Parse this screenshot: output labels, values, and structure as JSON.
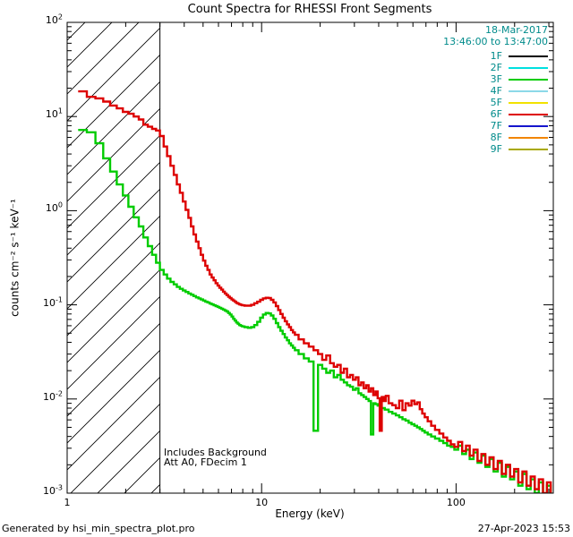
{
  "chart_data": {
    "type": "line",
    "title": "Count Spectra for RHESSI Front Segments",
    "date_label": "18-Mar-2017",
    "time_label": "13:46:00 to 13:47:00",
    "xlabel": "Energy (keV)",
    "ylabel": "counts cm⁻² s⁻¹ keV⁻¹",
    "xscale": "log",
    "yscale": "log",
    "xlim": [
      1,
      316.23
    ],
    "ylim": [
      0.001,
      100
    ],
    "grid": false,
    "legend_position": "top-right",
    "accent_text_color": "#008b8b",
    "axis_color": "#000000",
    "background_color": "#ffffff",
    "hatch_region_kev": [
      1,
      3
    ],
    "annotations": [
      "Includes Background",
      "Att A0, FDecim 1"
    ],
    "x_ticks": [
      {
        "v": 1,
        "label": "1"
      },
      {
        "v": 10,
        "label": "10"
      },
      {
        "v": 100,
        "label": "100"
      }
    ],
    "y_ticks": [
      {
        "v": 100,
        "base": "10",
        "exp": "2"
      },
      {
        "v": 10,
        "base": "10",
        "exp": "1"
      },
      {
        "v": 1,
        "base": "10",
        "exp": "0"
      },
      {
        "v": 0.1,
        "base": "10",
        "exp": "-1"
      },
      {
        "v": 0.01,
        "base": "10",
        "exp": "-2"
      },
      {
        "v": 0.001,
        "base": "10",
        "exp": "-3"
      }
    ],
    "legend": [
      {
        "label": "1F",
        "color": "#000000"
      },
      {
        "label": "2F",
        "color": "#00e0e0"
      },
      {
        "label": "3F",
        "color": "#00cc00"
      },
      {
        "label": "4F",
        "color": "#8cd9e8"
      },
      {
        "label": "5F",
        "color": "#f2e200"
      },
      {
        "label": "6F",
        "color": "#dd0000"
      },
      {
        "label": "7F",
        "color": "#1515cd"
      },
      {
        "label": "8F",
        "color": "#f28500"
      },
      {
        "label": "9F",
        "color": "#a8a800"
      }
    ],
    "series": [
      {
        "name": "3F",
        "color": "#00cc00",
        "points": [
          [
            1.2,
            7.2
          ],
          [
            1.33,
            6.8
          ],
          [
            1.47,
            5.2
          ],
          [
            1.6,
            3.6
          ],
          [
            1.73,
            2.6
          ],
          [
            1.87,
            1.9
          ],
          [
            2.0,
            1.45
          ],
          [
            2.13,
            1.1
          ],
          [
            2.27,
            0.85
          ],
          [
            2.4,
            0.68
          ],
          [
            2.53,
            0.52
          ],
          [
            2.67,
            0.42
          ],
          [
            2.8,
            0.34
          ],
          [
            2.93,
            0.28
          ],
          [
            3.07,
            0.235
          ],
          [
            3.2,
            0.21
          ],
          [
            3.33,
            0.19
          ],
          [
            3.47,
            0.175
          ],
          [
            3.6,
            0.165
          ],
          [
            3.73,
            0.155
          ],
          [
            3.87,
            0.148
          ],
          [
            4.0,
            0.142
          ],
          [
            4.13,
            0.137
          ],
          [
            4.27,
            0.132
          ],
          [
            4.4,
            0.128
          ],
          [
            4.53,
            0.124
          ],
          [
            4.67,
            0.12
          ],
          [
            4.8,
            0.117
          ],
          [
            4.93,
            0.114
          ],
          [
            5.07,
            0.111
          ],
          [
            5.2,
            0.108
          ],
          [
            5.33,
            0.106
          ],
          [
            5.47,
            0.103
          ],
          [
            5.6,
            0.101
          ],
          [
            5.73,
            0.099
          ],
          [
            5.87,
            0.097
          ],
          [
            6.0,
            0.095
          ],
          [
            6.13,
            0.093
          ],
          [
            6.27,
            0.091
          ],
          [
            6.4,
            0.089
          ],
          [
            6.53,
            0.087
          ],
          [
            6.67,
            0.085
          ],
          [
            6.8,
            0.082
          ],
          [
            6.93,
            0.079
          ],
          [
            7.07,
            0.075
          ],
          [
            7.2,
            0.071
          ],
          [
            7.33,
            0.068
          ],
          [
            7.47,
            0.065
          ],
          [
            7.6,
            0.063
          ],
          [
            7.73,
            0.061
          ],
          [
            7.87,
            0.06
          ],
          [
            8.0,
            0.059
          ],
          [
            8.33,
            0.058
          ],
          [
            8.67,
            0.057
          ],
          [
            9.0,
            0.058
          ],
          [
            9.33,
            0.061
          ],
          [
            9.67,
            0.066
          ],
          [
            10.0,
            0.073
          ],
          [
            10.33,
            0.079
          ],
          [
            10.67,
            0.082
          ],
          [
            11.0,
            0.081
          ],
          [
            11.33,
            0.077
          ],
          [
            11.67,
            0.071
          ],
          [
            12.0,
            0.064
          ],
          [
            12.33,
            0.058
          ],
          [
            12.67,
            0.053
          ],
          [
            13.0,
            0.049
          ],
          [
            13.33,
            0.045
          ],
          [
            13.67,
            0.042
          ],
          [
            14.0,
            0.039
          ],
          [
            14.33,
            0.037
          ],
          [
            14.67,
            0.035
          ],
          [
            15.0,
            0.033
          ],
          [
            16,
            0.03
          ],
          [
            17,
            0.027
          ],
          [
            18,
            0.025
          ],
          [
            19,
            0.0046
          ],
          [
            20,
            0.023
          ],
          [
            21,
            0.021
          ],
          [
            22,
            0.019
          ],
          [
            23,
            0.02
          ],
          [
            24,
            0.017
          ],
          [
            25,
            0.018
          ],
          [
            26,
            0.016
          ],
          [
            27,
            0.015
          ],
          [
            28,
            0.014
          ],
          [
            29,
            0.0135
          ],
          [
            30,
            0.0125
          ],
          [
            31,
            0.013
          ],
          [
            32,
            0.0115
          ],
          [
            33,
            0.011
          ],
          [
            34,
            0.0105
          ],
          [
            35,
            0.01
          ],
          [
            36,
            0.0095
          ],
          [
            37,
            0.0042
          ],
          [
            38,
            0.009
          ],
          [
            39,
            0.0088
          ],
          [
            40,
            0.0085
          ],
          [
            42,
            0.008
          ],
          [
            44,
            0.0077
          ],
          [
            46,
            0.0073
          ],
          [
            48,
            0.007
          ],
          [
            50,
            0.0067
          ],
          [
            52,
            0.0064
          ],
          [
            54,
            0.0061
          ],
          [
            56,
            0.0059
          ],
          [
            58,
            0.0056
          ],
          [
            60,
            0.0054
          ],
          [
            62,
            0.0052
          ],
          [
            64,
            0.005
          ],
          [
            66,
            0.0048
          ],
          [
            68,
            0.0046
          ],
          [
            70,
            0.0044
          ],
          [
            73,
            0.0042
          ],
          [
            76,
            0.004
          ],
          [
            80,
            0.0038
          ],
          [
            84,
            0.0036
          ],
          [
            88,
            0.0034
          ],
          [
            92,
            0.0032
          ],
          [
            96,
            0.0031
          ],
          [
            100,
            0.0029
          ],
          [
            105,
            0.0032
          ],
          [
            110,
            0.0026
          ],
          [
            115,
            0.0029
          ],
          [
            120,
            0.0023
          ],
          [
            126,
            0.0027
          ],
          [
            132,
            0.0021
          ],
          [
            138,
            0.0025
          ],
          [
            145,
            0.0019
          ],
          [
            152,
            0.0023
          ],
          [
            160,
            0.0017
          ],
          [
            168,
            0.0021
          ],
          [
            176,
            0.0015
          ],
          [
            185,
            0.0019
          ],
          [
            194,
            0.0014
          ],
          [
            204,
            0.0017
          ],
          [
            214,
            0.0012
          ],
          [
            225,
            0.0016
          ],
          [
            236,
            0.0011
          ],
          [
            248,
            0.0014
          ],
          [
            260,
            0.001
          ],
          [
            273,
            0.0013
          ],
          [
            287,
            0.0009
          ],
          [
            300,
            0.0012
          ]
        ]
      },
      {
        "name": "6F",
        "color": "#dd0000",
        "points": [
          [
            1.2,
            18.5
          ],
          [
            1.33,
            16.2
          ],
          [
            1.47,
            15.6
          ],
          [
            1.6,
            14.4
          ],
          [
            1.73,
            13.1
          ],
          [
            1.87,
            12.2
          ],
          [
            2.0,
            11.2
          ],
          [
            2.13,
            10.7
          ],
          [
            2.27,
            10.0
          ],
          [
            2.4,
            9.3
          ],
          [
            2.53,
            8.2
          ],
          [
            2.67,
            7.8
          ],
          [
            2.8,
            7.4
          ],
          [
            2.93,
            7.1
          ],
          [
            3.07,
            6.2
          ],
          [
            3.2,
            4.8
          ],
          [
            3.33,
            3.8
          ],
          [
            3.47,
            3.0
          ],
          [
            3.6,
            2.4
          ],
          [
            3.73,
            1.9
          ],
          [
            3.87,
            1.55
          ],
          [
            4.0,
            1.25
          ],
          [
            4.13,
            1.02
          ],
          [
            4.27,
            0.84
          ],
          [
            4.4,
            0.68
          ],
          [
            4.53,
            0.56
          ],
          [
            4.67,
            0.47
          ],
          [
            4.8,
            0.4
          ],
          [
            4.93,
            0.34
          ],
          [
            5.07,
            0.295
          ],
          [
            5.2,
            0.26
          ],
          [
            5.33,
            0.235
          ],
          [
            5.47,
            0.21
          ],
          [
            5.6,
            0.195
          ],
          [
            5.73,
            0.182
          ],
          [
            5.87,
            0.17
          ],
          [
            6.0,
            0.16
          ],
          [
            6.13,
            0.152
          ],
          [
            6.27,
            0.145
          ],
          [
            6.4,
            0.138
          ],
          [
            6.53,
            0.132
          ],
          [
            6.67,
            0.127
          ],
          [
            6.8,
            0.122
          ],
          [
            6.93,
            0.118
          ],
          [
            7.07,
            0.114
          ],
          [
            7.2,
            0.111
          ],
          [
            7.33,
            0.108
          ],
          [
            7.47,
            0.105
          ],
          [
            7.6,
            0.103
          ],
          [
            7.73,
            0.101
          ],
          [
            7.87,
            0.1
          ],
          [
            8.0,
            0.099
          ],
          [
            8.33,
            0.098
          ],
          [
            8.67,
            0.098
          ],
          [
            9.0,
            0.1
          ],
          [
            9.33,
            0.104
          ],
          [
            9.67,
            0.108
          ],
          [
            10.0,
            0.113
          ],
          [
            10.33,
            0.117
          ],
          [
            10.67,
            0.119
          ],
          [
            11.0,
            0.118
          ],
          [
            11.33,
            0.113
          ],
          [
            11.67,
            0.106
          ],
          [
            12.0,
            0.097
          ],
          [
            12.33,
            0.088
          ],
          [
            12.67,
            0.08
          ],
          [
            13.0,
            0.073
          ],
          [
            13.33,
            0.067
          ],
          [
            13.67,
            0.062
          ],
          [
            14.0,
            0.058
          ],
          [
            14.33,
            0.054
          ],
          [
            14.67,
            0.051
          ],
          [
            15.0,
            0.048
          ],
          [
            16,
            0.043
          ],
          [
            17,
            0.039
          ],
          [
            18,
            0.036
          ],
          [
            19,
            0.033
          ],
          [
            20,
            0.03
          ],
          [
            21,
            0.026
          ],
          [
            22,
            0.029
          ],
          [
            23,
            0.024
          ],
          [
            24,
            0.022
          ],
          [
            25,
            0.023
          ],
          [
            26,
            0.019
          ],
          [
            27,
            0.021
          ],
          [
            28,
            0.017
          ],
          [
            29,
            0.018
          ],
          [
            30,
            0.016
          ],
          [
            31,
            0.017
          ],
          [
            32,
            0.014
          ],
          [
            33,
            0.015
          ],
          [
            34,
            0.013
          ],
          [
            35,
            0.014
          ],
          [
            36,
            0.012
          ],
          [
            37,
            0.013
          ],
          [
            38,
            0.011
          ],
          [
            39,
            0.012
          ],
          [
            40,
            0.0102
          ],
          [
            41,
            0.0046
          ],
          [
            42,
            0.0105
          ],
          [
            43,
            0.0095
          ],
          [
            44,
            0.0108
          ],
          [
            46,
            0.009
          ],
          [
            48,
            0.0086
          ],
          [
            50,
            0.008
          ],
          [
            52,
            0.0096
          ],
          [
            54,
            0.0076
          ],
          [
            56,
            0.009
          ],
          [
            58,
            0.0085
          ],
          [
            60,
            0.0096
          ],
          [
            62,
            0.0088
          ],
          [
            64,
            0.0092
          ],
          [
            66,
            0.0078
          ],
          [
            68,
            0.007
          ],
          [
            70,
            0.0064
          ],
          [
            73,
            0.0058
          ],
          [
            76,
            0.0052
          ],
          [
            80,
            0.0047
          ],
          [
            84,
            0.0043
          ],
          [
            88,
            0.0039
          ],
          [
            92,
            0.0036
          ],
          [
            96,
            0.0033
          ],
          [
            100,
            0.0031
          ],
          [
            105,
            0.0035
          ],
          [
            110,
            0.0028
          ],
          [
            115,
            0.0032
          ],
          [
            120,
            0.0025
          ],
          [
            126,
            0.0029
          ],
          [
            132,
            0.0022
          ],
          [
            138,
            0.0026
          ],
          [
            145,
            0.002
          ],
          [
            152,
            0.0024
          ],
          [
            160,
            0.0018
          ],
          [
            168,
            0.0022
          ],
          [
            176,
            0.0016
          ],
          [
            185,
            0.002
          ],
          [
            194,
            0.0015
          ],
          [
            204,
            0.0018
          ],
          [
            214,
            0.0013
          ],
          [
            225,
            0.0017
          ],
          [
            236,
            0.0012
          ],
          [
            248,
            0.0015
          ],
          [
            260,
            0.0011
          ],
          [
            273,
            0.0014
          ],
          [
            287,
            0.001
          ],
          [
            300,
            0.0013
          ]
        ]
      }
    ]
  },
  "footer": {
    "generated_by": "Generated by hsi_min_spectra_plot.pro",
    "timestamp": "27-Apr-2023 15:53"
  }
}
